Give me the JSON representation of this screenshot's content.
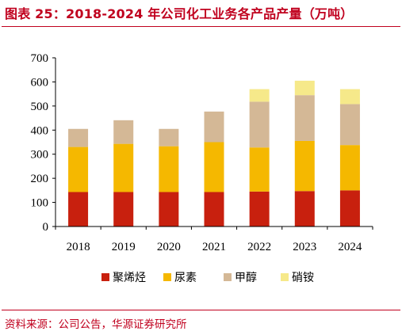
{
  "header": {
    "title": "图表 25：2018-2024 年公司化工业务各产品产量（万吨）"
  },
  "footer": {
    "source": "资料来源：公司公告，华源证券研究所"
  },
  "chart_data": {
    "type": "bar",
    "stacked": true,
    "title": "",
    "xlabel": "",
    "ylabel": "",
    "categories": [
      "2018",
      "2019",
      "2020",
      "2021",
      "2022",
      "2023",
      "2024"
    ],
    "ylim": [
      0,
      700
    ],
    "yticks": [
      0,
      100,
      200,
      300,
      400,
      500,
      600,
      700
    ],
    "grid": false,
    "legend_position": "bottom",
    "series": [
      {
        "name": "聚烯烃",
        "color": "#c8200e",
        "values": [
          143,
          143,
          143,
          143,
          145,
          147,
          150
        ]
      },
      {
        "name": "尿素",
        "color": "#f5b800",
        "values": [
          187,
          200,
          190,
          207,
          183,
          208,
          188
        ]
      },
      {
        "name": "甲醇",
        "color": "#d4b896",
        "values": [
          75,
          98,
          72,
          127,
          190,
          190,
          170
        ]
      },
      {
        "name": "硝铵",
        "color": "#f6e98a",
        "values": [
          0,
          0,
          0,
          0,
          52,
          60,
          62
        ]
      }
    ]
  }
}
